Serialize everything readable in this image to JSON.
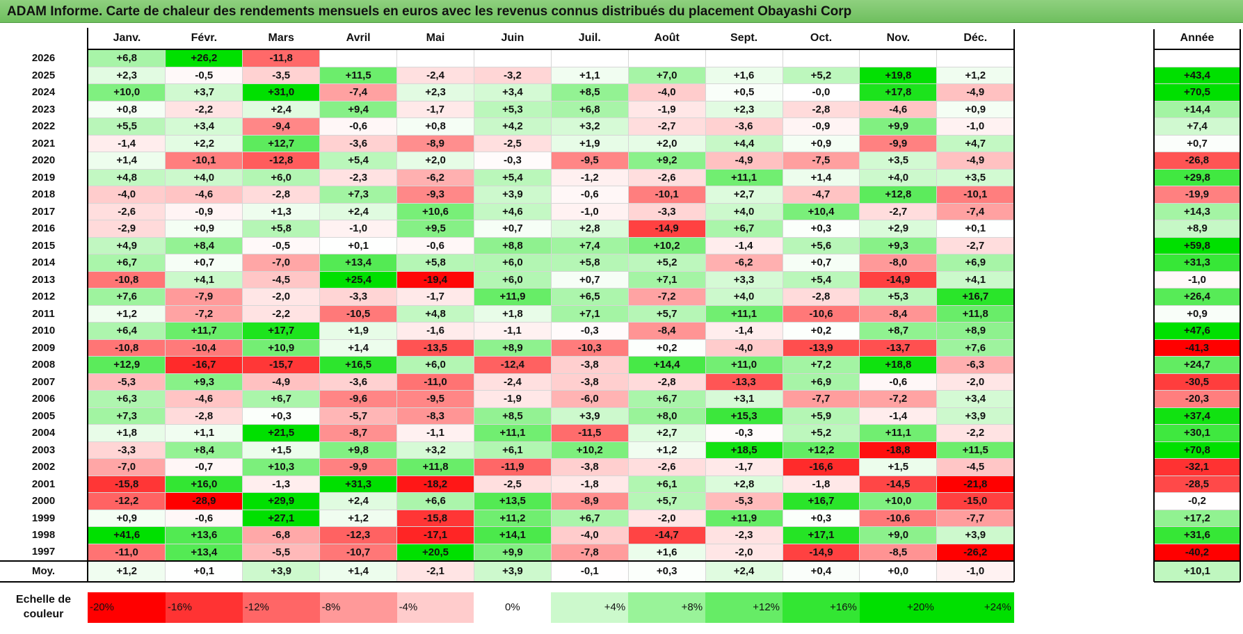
{
  "title": "ADAM Informe. Carte de chaleur des rendements mensuels en euros avec les revenus connus distribués du placement Obayashi Corp",
  "chart_data": {
    "type": "heatmap",
    "title": "ADAM Informe. Carte de chaleur des rendements mensuels en euros avec les revenus connus distribués du placement Obayashi Corp",
    "columns": [
      "Janv.",
      "Févr.",
      "Mars",
      "Avril",
      "Mai",
      "Juin",
      "Juil.",
      "Août",
      "Sept.",
      "Oct.",
      "Nov.",
      "Déc."
    ],
    "year_header": "Année",
    "rows": [
      {
        "year": "2026",
        "values": [
          "+6,8",
          "+26,2",
          "-11,8",
          "",
          "",
          "",
          "",
          "",
          "",
          "",
          "",
          ""
        ],
        "annual": ""
      },
      {
        "year": "2025",
        "values": [
          "+2,3",
          "-0,5",
          "-3,5",
          "+11,5",
          "-2,4",
          "-3,2",
          "+1,1",
          "+7,0",
          "+1,6",
          "+5,2",
          "+19,8",
          "+1,2"
        ],
        "annual": "+43,4"
      },
      {
        "year": "2024",
        "values": [
          "+10,0",
          "+3,7",
          "+31,0",
          "-7,4",
          "+2,3",
          "+3,4",
          "+8,5",
          "-4,0",
          "+0,5",
          "-0,0",
          "+17,8",
          "-4,9"
        ],
        "annual": "+70,5"
      },
      {
        "year": "2023",
        "values": [
          "+0,8",
          "-2,2",
          "+2,4",
          "+9,4",
          "-1,7",
          "+5,3",
          "+6,8",
          "-1,9",
          "+2,3",
          "-2,8",
          "-4,6",
          "+0,9"
        ],
        "annual": "+14,4"
      },
      {
        "year": "2022",
        "values": [
          "+5,5",
          "+3,4",
          "-9,4",
          "-0,6",
          "+0,8",
          "+4,2",
          "+3,2",
          "-2,7",
          "-3,6",
          "-0,9",
          "+9,9",
          "-1,0"
        ],
        "annual": "+7,4"
      },
      {
        "year": "2021",
        "values": [
          "-1,4",
          "+2,2",
          "+12,7",
          "-3,6",
          "-8,9",
          "-2,5",
          "+1,9",
          "+2,0",
          "+4,4",
          "+0,9",
          "-9,9",
          "+4,7"
        ],
        "annual": "+0,7"
      },
      {
        "year": "2020",
        "values": [
          "+1,4",
          "-10,1",
          "-12,8",
          "+5,4",
          "+2,0",
          "-0,3",
          "-9,5",
          "+9,2",
          "-4,9",
          "-7,5",
          "+3,5",
          "-4,9"
        ],
        "annual": "-26,8"
      },
      {
        "year": "2019",
        "values": [
          "+4,8",
          "+4,0",
          "+6,0",
          "-2,3",
          "-6,2",
          "+5,4",
          "-1,2",
          "-2,6",
          "+11,1",
          "+1,4",
          "+4,0",
          "+3,5"
        ],
        "annual": "+29,8"
      },
      {
        "year": "2018",
        "values": [
          "-4,0",
          "-4,6",
          "-2,8",
          "+7,3",
          "-9,3",
          "+3,9",
          "-0,6",
          "-10,1",
          "+2,7",
          "-4,7",
          "+12,8",
          "-10,1"
        ],
        "annual": "-19,9"
      },
      {
        "year": "2017",
        "values": [
          "-2,6",
          "-0,9",
          "+1,3",
          "+2,4",
          "+10,6",
          "+4,6",
          "-1,0",
          "-3,3",
          "+4,0",
          "+10,4",
          "-2,7",
          "-7,4"
        ],
        "annual": "+14,3"
      },
      {
        "year": "2016",
        "values": [
          "-2,9",
          "+0,9",
          "+5,8",
          "-1,0",
          "+9,5",
          "+0,7",
          "+2,8",
          "-14,9",
          "+6,7",
          "+0,3",
          "+2,9",
          "+0,1"
        ],
        "annual": "+8,9"
      },
      {
        "year": "2015",
        "values": [
          "+4,9",
          "+8,4",
          "-0,5",
          "+0,1",
          "-0,6",
          "+8,8",
          "+7,4",
          "+10,2",
          "-1,4",
          "+5,6",
          "+9,3",
          "-2,7"
        ],
        "annual": "+59,8"
      },
      {
        "year": "2014",
        "values": [
          "+6,7",
          "+0,7",
          "-7,0",
          "+13,4",
          "+5,8",
          "+6,0",
          "+5,8",
          "+5,2",
          "-6,2",
          "+0,7",
          "-8,0",
          "+6,9"
        ],
        "annual": "+31,3"
      },
      {
        "year": "2013",
        "values": [
          "-10,8",
          "+4,1",
          "-4,5",
          "+25,4",
          "-19,4",
          "+6,0",
          "+0,7",
          "+7,1",
          "+3,3",
          "+5,4",
          "-14,9",
          "+4,1"
        ],
        "annual": "-1,0"
      },
      {
        "year": "2012",
        "values": [
          "+7,6",
          "-7,9",
          "-2,0",
          "-3,3",
          "-1,7",
          "+11,9",
          "+6,5",
          "-7,2",
          "+4,0",
          "-2,8",
          "+5,3",
          "+16,7"
        ],
        "annual": "+26,4"
      },
      {
        "year": "2011",
        "values": [
          "+1,2",
          "-7,2",
          "-2,2",
          "-10,5",
          "+4,8",
          "+1,8",
          "+7,1",
          "+5,7",
          "+11,1",
          "-10,6",
          "-8,4",
          "+11,8"
        ],
        "annual": "+0,9"
      },
      {
        "year": "2010",
        "values": [
          "+6,4",
          "+11,7",
          "+17,7",
          "+1,9",
          "-1,6",
          "-1,1",
          "-0,3",
          "-8,4",
          "-1,4",
          "+0,2",
          "+8,7",
          "+8,9"
        ],
        "annual": "+47,6"
      },
      {
        "year": "2009",
        "values": [
          "-10,8",
          "-10,4",
          "+10,9",
          "+1,4",
          "-13,5",
          "+8,9",
          "-10,3",
          "+0,2",
          "-4,0",
          "-13,9",
          "-13,7",
          "+7,6"
        ],
        "annual": "-41,3"
      },
      {
        "year": "2008",
        "values": [
          "+12,9",
          "-16,7",
          "-15,7",
          "+16,5",
          "+6,0",
          "-12,4",
          "-3,8",
          "+14,4",
          "+11,0",
          "+7,2",
          "+18,8",
          "-6,3"
        ],
        "annual": "+24,7"
      },
      {
        "year": "2007",
        "values": [
          "-5,3",
          "+9,3",
          "-4,9",
          "-3,6",
          "-11,0",
          "-2,4",
          "-3,8",
          "-2,8",
          "-13,3",
          "+6,9",
          "-0,6",
          "-2,0"
        ],
        "annual": "-30,5"
      },
      {
        "year": "2006",
        "values": [
          "+6,3",
          "-4,6",
          "+6,7",
          "-9,6",
          "-9,5",
          "-1,9",
          "-6,0",
          "+6,7",
          "+3,1",
          "-7,7",
          "-7,2",
          "+3,4"
        ],
        "annual": "-20,3"
      },
      {
        "year": "2005",
        "values": [
          "+7,3",
          "-2,8",
          "+0,3",
          "-5,7",
          "-8,3",
          "+8,5",
          "+3,9",
          "+8,0",
          "+15,3",
          "+5,9",
          "-1,4",
          "+3,9"
        ],
        "annual": "+37,4"
      },
      {
        "year": "2004",
        "values": [
          "+1,8",
          "+1,1",
          "+21,5",
          "-8,7",
          "-1,1",
          "+11,1",
          "-11,5",
          "+2,7",
          "-0,3",
          "+5,2",
          "+11,1",
          "-2,2"
        ],
        "annual": "+30,1"
      },
      {
        "year": "2003",
        "values": [
          "-3,3",
          "+8,4",
          "+1,5",
          "+9,8",
          "+3,2",
          "+6,1",
          "+10,2",
          "+1,2",
          "+18,5",
          "+12,2",
          "-18,8",
          "+11,5"
        ],
        "annual": "+70,8"
      },
      {
        "year": "2002",
        "values": [
          "-7,0",
          "-0,7",
          "+10,3",
          "-9,9",
          "+11,8",
          "-11,9",
          "-3,8",
          "-2,6",
          "-1,7",
          "-16,6",
          "+1,5",
          "-4,5"
        ],
        "annual": "-32,1"
      },
      {
        "year": "2001",
        "values": [
          "-15,8",
          "+16,0",
          "-1,3",
          "+31,3",
          "-18,2",
          "-2,5",
          "-1,8",
          "+6,1",
          "+2,8",
          "-1,8",
          "-14,5",
          "-21,8"
        ],
        "annual": "-28,5"
      },
      {
        "year": "2000",
        "values": [
          "-12,2",
          "-28,9",
          "+29,9",
          "+2,4",
          "+6,6",
          "+13,5",
          "-8,9",
          "+5,7",
          "-5,3",
          "+16,7",
          "+10,0",
          "-15,0"
        ],
        "annual": "-0,2"
      },
      {
        "year": "1999",
        "values": [
          "+0,9",
          "-0,6",
          "+27,1",
          "+1,2",
          "-15,8",
          "+11,2",
          "+6,7",
          "-2,0",
          "+11,9",
          "+0,3",
          "-10,6",
          "-7,7"
        ],
        "annual": "+17,2"
      },
      {
        "year": "1998",
        "values": [
          "+41,6",
          "+13,6",
          "-6,8",
          "-12,3",
          "-17,1",
          "+14,1",
          "-4,0",
          "-14,7",
          "-2,3",
          "+17,1",
          "+9,0",
          "+3,9"
        ],
        "annual": "+31,6"
      },
      {
        "year": "1997",
        "values": [
          "-11,0",
          "+13,4",
          "-5,5",
          "-10,7",
          "+20,5",
          "+9,9",
          "-7,8",
          "+1,6",
          "-2,0",
          "-14,9",
          "-8,5",
          "-26,2"
        ],
        "annual": "-40,2"
      }
    ],
    "average": {
      "label": "Moy.",
      "values": [
        "+1,2",
        "+0,1",
        "+3,9",
        "+1,4",
        "-2,1",
        "+3,9",
        "-0,1",
        "+0,3",
        "+2,4",
        "+0,4",
        "+0,0",
        "-1,0"
      ],
      "annual": "+10,1"
    },
    "color_scale": {
      "label": "Echelle de couleur",
      "stops": [
        "-20%",
        "-16%",
        "-12%",
        "-8%",
        "-4%",
        "0%",
        "+4%",
        "+8%",
        "+12%",
        "+16%",
        "+20%",
        "+24%"
      ]
    },
    "colors": {
      "negative_max": "#ff0000",
      "positive_max": "#00e000",
      "neutral": "#ffffff"
    }
  }
}
